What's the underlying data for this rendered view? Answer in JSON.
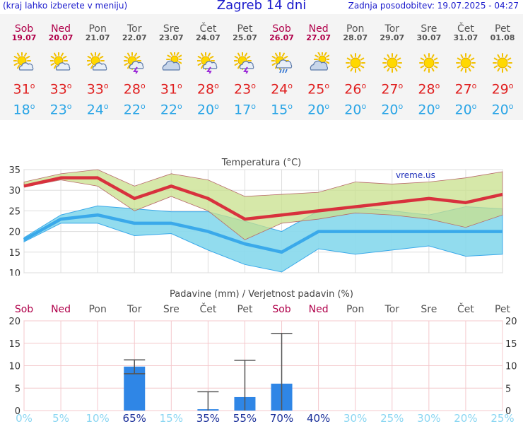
{
  "header": {
    "hint": "(kraj lahko izberete v meniju)",
    "title": "Zagreb 14 dni",
    "updated": "Zadnja posodobitev: 19.07.2025 - 04:27"
  },
  "days": [
    {
      "name": "Sob",
      "date": "19.07",
      "weekend": true,
      "icon": "sun-cloud-icon",
      "max": "31",
      "min": "18"
    },
    {
      "name": "Ned",
      "date": "20.07",
      "weekend": true,
      "icon": "sun-cloud-icon",
      "max": "33",
      "min": "23"
    },
    {
      "name": "Pon",
      "date": "21.07",
      "weekend": false,
      "icon": "sun-cloud-icon",
      "max": "33",
      "min": "24"
    },
    {
      "name": "Tor",
      "date": "22.07",
      "weekend": false,
      "icon": "sun-storm-icon",
      "max": "28",
      "min": "22"
    },
    {
      "name": "Sre",
      "date": "23.07",
      "weekend": false,
      "icon": "cloud-sun-icon",
      "max": "31",
      "min": "22"
    },
    {
      "name": "Čet",
      "date": "24.07",
      "weekend": false,
      "icon": "sun-storm-icon",
      "max": "28",
      "min": "20"
    },
    {
      "name": "Pet",
      "date": "25.07",
      "weekend": false,
      "icon": "sun-storm-icon",
      "max": "23",
      "min": "17"
    },
    {
      "name": "Sob",
      "date": "26.07",
      "weekend": true,
      "icon": "sun-rain-icon",
      "max": "24",
      "min": "15"
    },
    {
      "name": "Ned",
      "date": "27.07",
      "weekend": true,
      "icon": "cloud-sun-icon",
      "max": "25",
      "min": "20"
    },
    {
      "name": "Pon",
      "date": "28.07",
      "weekend": false,
      "icon": "sun-icon",
      "max": "26",
      "min": "20"
    },
    {
      "name": "Tor",
      "date": "29.07",
      "weekend": false,
      "icon": "sun-icon",
      "max": "27",
      "min": "20"
    },
    {
      "name": "Sre",
      "date": "30.07",
      "weekend": false,
      "icon": "sun-icon",
      "max": "28",
      "min": "20"
    },
    {
      "name": "Čet",
      "date": "31.07",
      "weekend": false,
      "icon": "sun-icon",
      "max": "27",
      "min": "20"
    },
    {
      "name": "Pet",
      "date": "01.08",
      "weekend": false,
      "icon": "sun-icon",
      "max": "29",
      "min": "20"
    }
  ],
  "colors": {
    "max_line": "#d8313d",
    "min_line": "#3aa9ea",
    "max_band": "#c8e08c",
    "min_band": "#86d8ec",
    "overlap": "#86c97a",
    "rain_bar": "#2f86e6",
    "prob_high": "#1a2f99",
    "prob_low": "#8ad6f2",
    "weekend": "#b0004a",
    "weekday": "#555555"
  },
  "chart_data": [
    {
      "type": "line",
      "title": "Temperatura",
      "unit": "°C",
      "watermark": "vreme.us",
      "ylim": [
        10,
        35
      ],
      "yticks": [
        10,
        15,
        20,
        25,
        30,
        35
      ],
      "x": [
        "Sob",
        "Ned",
        "Pon",
        "Tor",
        "Sre",
        "Čet",
        "Pet",
        "Sob",
        "Ned",
        "Pon",
        "Tor",
        "Sre",
        "Čet",
        "Pet"
      ],
      "series": [
        {
          "values": [
            31,
            33,
            33,
            28,
            31,
            28,
            23,
            24,
            25,
            26,
            27,
            28,
            27,
            29
          ]
        },
        {
          "values": [
            18,
            23,
            24,
            22,
            22,
            20,
            17,
            15,
            20,
            20,
            20,
            20,
            20,
            20
          ]
        }
      ],
      "max_range": {
        "low": [
          30.8,
          32.5,
          31,
          25,
          28.5,
          25,
          18,
          22,
          23,
          24.5,
          24,
          23,
          21,
          24
        ],
        "high": [
          32,
          34,
          35,
          31,
          34,
          32.5,
          28.5,
          29,
          29.5,
          32,
          31.5,
          32,
          33,
          34.5
        ]
      },
      "min_range": {
        "low": [
          17.5,
          22,
          22,
          19,
          19.5,
          15.5,
          12,
          10.2,
          15.8,
          14.5,
          15.5,
          16.5,
          14,
          14.5
        ],
        "high": [
          18.5,
          24,
          26.2,
          25.5,
          24.8,
          24.8,
          22.5,
          20,
          25,
          25.8,
          25,
          24,
          26,
          25.5
        ]
      },
      "grid": true
    },
    {
      "type": "bar",
      "title": "Padavine (mm) / Verjetnost padavin (%)",
      "categories": [
        "Sob",
        "Ned",
        "Pon",
        "Tor",
        "Sre",
        "Čet",
        "Pet",
        "Sob",
        "Ned",
        "Pon",
        "Tor",
        "Sre",
        "Čet",
        "Pet"
      ],
      "values": [
        0,
        0,
        0,
        9.8,
        0,
        0.3,
        3,
        6,
        0,
        0,
        0,
        0,
        0,
        0
      ],
      "error_low": [
        null,
        null,
        null,
        8.2,
        null,
        0,
        0,
        0,
        null,
        null,
        null,
        null,
        null,
        null
      ],
      "error_high": [
        null,
        null,
        null,
        11.3,
        null,
        4.2,
        11.2,
        17.2,
        null,
        null,
        null,
        null,
        null,
        null
      ],
      "probability": [
        "0%",
        "5%",
        "10%",
        "65%",
        "15%",
        "35%",
        "55%",
        "70%",
        "40%",
        "30%",
        "25%",
        "30%",
        "20%",
        "25%"
      ],
      "ylim": [
        0,
        20
      ],
      "yticks": [
        0,
        5,
        10,
        15,
        20
      ],
      "grid": true
    }
  ]
}
